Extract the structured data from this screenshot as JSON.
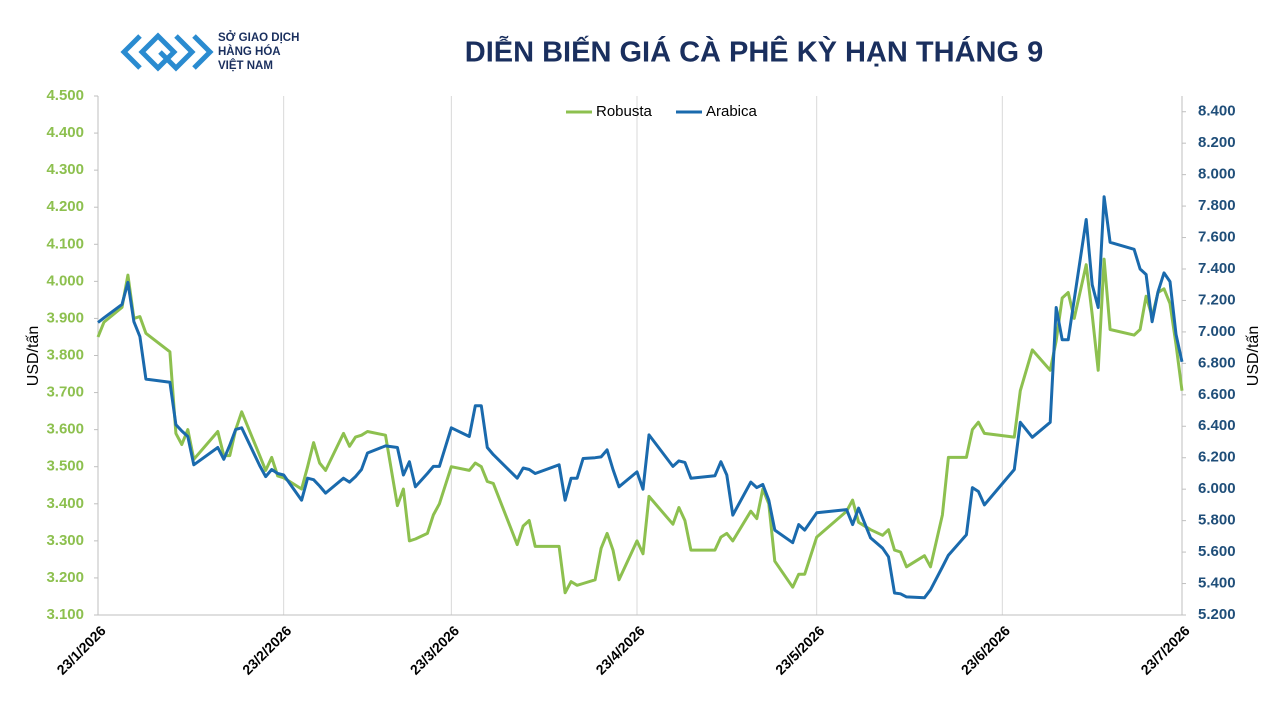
{
  "logo": {
    "lines": [
      "SỞ GIAO DỊCH",
      "HÀNG HÓA",
      "VIỆT NAM"
    ]
  },
  "chart_data": {
    "type": "line",
    "title": "DIỄN BIẾN GIÁ CÀ PHÊ KỲ HẠN THÁNG 9",
    "ylabel": "USD/tấn",
    "y2label": "USD/tấn",
    "legend": "top",
    "grid": true,
    "xlim": [
      "2026-01-23",
      "2026-07-23"
    ],
    "xticks": [
      {
        "value": "2026-01-23",
        "label": "23/1/2026"
      },
      {
        "value": "2026-02-23",
        "label": "23/2/2026"
      },
      {
        "value": "2026-03-23",
        "label": "23/3/2026"
      },
      {
        "value": "2026-04-23",
        "label": "23/4/2026"
      },
      {
        "value": "2026-05-23",
        "label": "23/5/2026"
      },
      {
        "value": "2026-06-23",
        "label": "23/6/2026"
      },
      {
        "value": "2026-07-23",
        "label": "23/7/2026"
      }
    ],
    "ylim": [
      3100,
      4500
    ],
    "yticks": [
      {
        "value": 3100,
        "label": "3.100"
      },
      {
        "value": 3200,
        "label": "3.200"
      },
      {
        "value": 3300,
        "label": "3.300"
      },
      {
        "value": 3400,
        "label": "3.400"
      },
      {
        "value": 3500,
        "label": "3.500"
      },
      {
        "value": 3600,
        "label": "3.600"
      },
      {
        "value": 3700,
        "label": "3.700"
      },
      {
        "value": 3800,
        "label": "3.800"
      },
      {
        "value": 3900,
        "label": "3.900"
      },
      {
        "value": 4000,
        "label": "4.000"
      },
      {
        "value": 4100,
        "label": "4.100"
      },
      {
        "value": 4200,
        "label": "4.200"
      },
      {
        "value": 4300,
        "label": "4.300"
      },
      {
        "value": 4400,
        "label": "4.400"
      },
      {
        "value": 4500,
        "label": "4.500"
      }
    ],
    "y2lim": [
      5200,
      8500
    ],
    "y2ticks": [
      {
        "value": 5200,
        "label": "5.200"
      },
      {
        "value": 5400,
        "label": "5.400"
      },
      {
        "value": 5600,
        "label": "5.600"
      },
      {
        "value": 5800,
        "label": "5.800"
      },
      {
        "value": 6000,
        "label": "6.000"
      },
      {
        "value": 6200,
        "label": "6.200"
      },
      {
        "value": 6400,
        "label": "6.400"
      },
      {
        "value": 6600,
        "label": "6.600"
      },
      {
        "value": 6800,
        "label": "6.800"
      },
      {
        "value": 7000,
        "label": "7.000"
      },
      {
        "value": 7200,
        "label": "7.200"
      },
      {
        "value": 7400,
        "label": "7.400"
      },
      {
        "value": 7600,
        "label": "7.600"
      },
      {
        "value": 7800,
        "label": "7.800"
      },
      {
        "value": 8000,
        "label": "8.000"
      },
      {
        "value": 8200,
        "label": "8.200"
      },
      {
        "value": 8400,
        "label": "8.400"
      }
    ],
    "x": [
      "2026-01-23",
      "2026-01-24",
      "2026-01-27",
      "2026-01-28",
      "2026-01-29",
      "2026-01-30",
      "2026-01-31",
      "2026-02-04",
      "2026-02-05",
      "2026-02-06",
      "2026-02-07",
      "2026-02-08",
      "2026-02-12",
      "2026-02-13",
      "2026-02-14",
      "2026-02-15",
      "2026-02-16",
      "2026-02-19",
      "2026-02-20",
      "2026-02-21",
      "2026-02-22",
      "2026-02-23",
      "2026-02-26",
      "2026-02-27",
      "2026-02-28",
      "2026-03-01",
      "2026-03-02",
      "2026-03-05",
      "2026-03-06",
      "2026-03-07",
      "2026-03-08",
      "2026-03-09",
      "2026-03-12",
      "2026-03-14",
      "2026-03-15",
      "2026-03-16",
      "2026-03-17",
      "2026-03-19",
      "2026-03-20",
      "2026-03-21",
      "2026-03-23",
      "2026-03-26",
      "2026-03-27",
      "2026-03-28",
      "2026-03-29",
      "2026-03-30",
      "2026-04-03",
      "2026-04-04",
      "2026-04-05",
      "2026-04-06",
      "2026-04-10",
      "2026-04-11",
      "2026-04-12",
      "2026-04-13",
      "2026-04-14",
      "2026-04-16",
      "2026-04-17",
      "2026-04-18",
      "2026-04-19",
      "2026-04-20",
      "2026-04-23",
      "2026-04-24",
      "2026-04-25",
      "2026-04-29",
      "2026-04-30",
      "2026-05-01",
      "2026-05-02",
      "2026-05-06",
      "2026-05-07",
      "2026-05-08",
      "2026-05-09",
      "2026-05-12",
      "2026-05-13",
      "2026-05-14",
      "2026-05-15",
      "2026-05-16",
      "2026-05-19",
      "2026-05-20",
      "2026-05-21",
      "2026-05-23",
      "2026-05-28",
      "2026-05-29",
      "2026-05-30",
      "2026-06-01",
      "2026-06-03",
      "2026-06-04",
      "2026-06-05",
      "2026-06-06",
      "2026-06-07",
      "2026-06-10",
      "2026-06-11",
      "2026-06-13",
      "2026-06-14",
      "2026-06-17",
      "2026-06-18",
      "2026-06-19",
      "2026-06-20",
      "2026-06-25",
      "2026-06-26",
      "2026-06-28",
      "2026-07-01",
      "2026-07-02",
      "2026-07-03",
      "2026-07-04",
      "2026-07-05",
      "2026-07-07",
      "2026-07-08",
      "2026-07-09",
      "2026-07-10",
      "2026-07-11",
      "2026-07-15",
      "2026-07-16",
      "2026-07-17",
      "2026-07-18",
      "2026-07-19",
      "2026-07-20",
      "2026-07-21",
      "2026-07-22",
      "2026-07-23"
    ],
    "series": [
      {
        "name": "Robusta",
        "color": "#8dc04f",
        "axis": "y",
        "values": [
          3850,
          3890,
          3930,
          4017,
          3900,
          3905,
          3860,
          3810,
          3590,
          3560,
          3600,
          3520,
          3595,
          3530,
          3530,
          3600,
          3648,
          3530,
          3490,
          3525,
          3475,
          3470,
          3440,
          3500,
          3565,
          3510,
          3490,
          3590,
          3555,
          3580,
          3585,
          3595,
          3585,
          3395,
          3440,
          3300,
          3305,
          3320,
          3370,
          3400,
          3500,
          3490,
          3510,
          3500,
          3460,
          3455,
          3290,
          3340,
          3355,
          3285,
          3285,
          3160,
          3190,
          3180,
          3185,
          3195,
          3280,
          3320,
          3275,
          3195,
          3300,
          3265,
          3420,
          3345,
          3390,
          3355,
          3275,
          3275,
          3310,
          3320,
          3300,
          3380,
          3360,
          3440,
          3400,
          3245,
          3175,
          3210,
          3210,
          3310,
          3380,
          3410,
          3350,
          3330,
          3315,
          3330,
          3275,
          3270,
          3230,
          3260,
          3230,
          3370,
          3525,
          3525,
          3600,
          3620,
          3590,
          3580,
          3705,
          3815,
          3760,
          3840,
          3955,
          3970,
          3900,
          4045,
          3910,
          3760,
          4060,
          3870,
          3855,
          3870,
          3960,
          3905,
          3970,
          3980,
          3940,
          3830,
          3705
        ]
      },
      {
        "name": "Arabica",
        "color": "#1a6aad",
        "axis": "y2",
        "values": [
          7060,
          7090,
          7175,
          7315,
          7065,
          6970,
          6700,
          6680,
          6410,
          6370,
          6335,
          6155,
          6265,
          6190,
          6280,
          6380,
          6390,
          6150,
          6080,
          6125,
          6100,
          6090,
          5930,
          6070,
          6060,
          6020,
          5975,
          6070,
          6045,
          6080,
          6125,
          6230,
          6275,
          6265,
          6090,
          6175,
          6015,
          6100,
          6145,
          6145,
          6390,
          6335,
          6530,
          6530,
          6265,
          6220,
          6070,
          6135,
          6125,
          6100,
          6155,
          5930,
          6070,
          6070,
          6195,
          6200,
          6205,
          6250,
          6125,
          6015,
          6110,
          6000,
          6345,
          6145,
          6180,
          6170,
          6070,
          6085,
          6175,
          6090,
          5835,
          6045,
          6010,
          6030,
          5930,
          5740,
          5660,
          5775,
          5740,
          5850,
          5870,
          5775,
          5880,
          5690,
          5625,
          5570,
          5340,
          5335,
          5315,
          5310,
          5360,
          5505,
          5580,
          5710,
          6010,
          5985,
          5900,
          6125,
          6425,
          6330,
          6425,
          7155,
          6950,
          6950,
          7205,
          7715,
          7300,
          7155,
          7860,
          7570,
          7525,
          7400,
          7365,
          7065,
          7255,
          7375,
          7320,
          6985,
          6810
        ]
      }
    ]
  }
}
